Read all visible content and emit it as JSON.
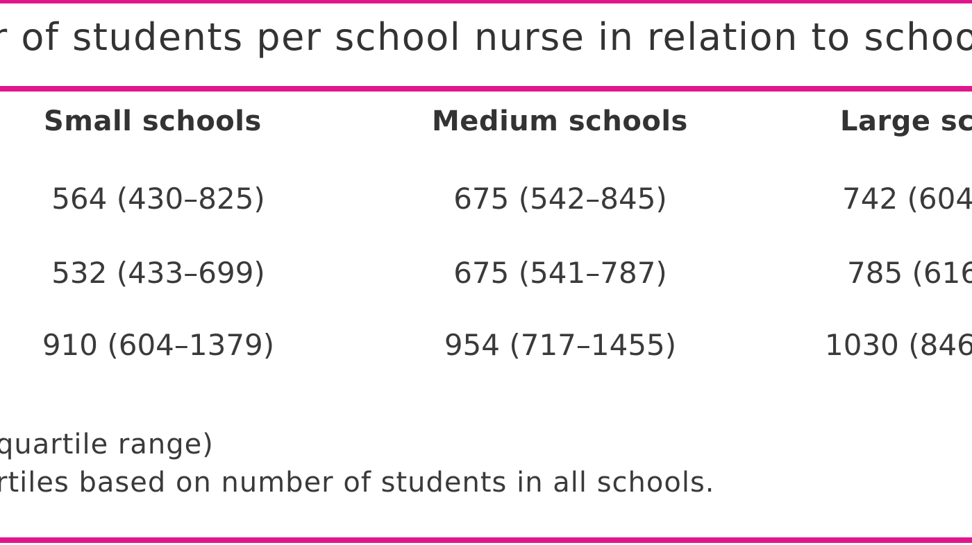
{
  "colors": {
    "accent": "#e0168c",
    "text": "#333333"
  },
  "table": {
    "title": "r of students per school nurse in relation to schoo",
    "headers": [
      "Small schools",
      "Medium schools",
      "Large sc"
    ],
    "rows": [
      [
        "564 (430–825)",
        "675 (542–845)",
        "742 (604"
      ],
      [
        "532 (433–699)",
        "675 (541–787)",
        "785 (616"
      ],
      [
        "910 (604–1379)",
        "954 (717–1455)",
        "1030 (846"
      ]
    ],
    "footnotes": [
      "quartile range)",
      "rtiles based on number of students in all schools."
    ]
  }
}
